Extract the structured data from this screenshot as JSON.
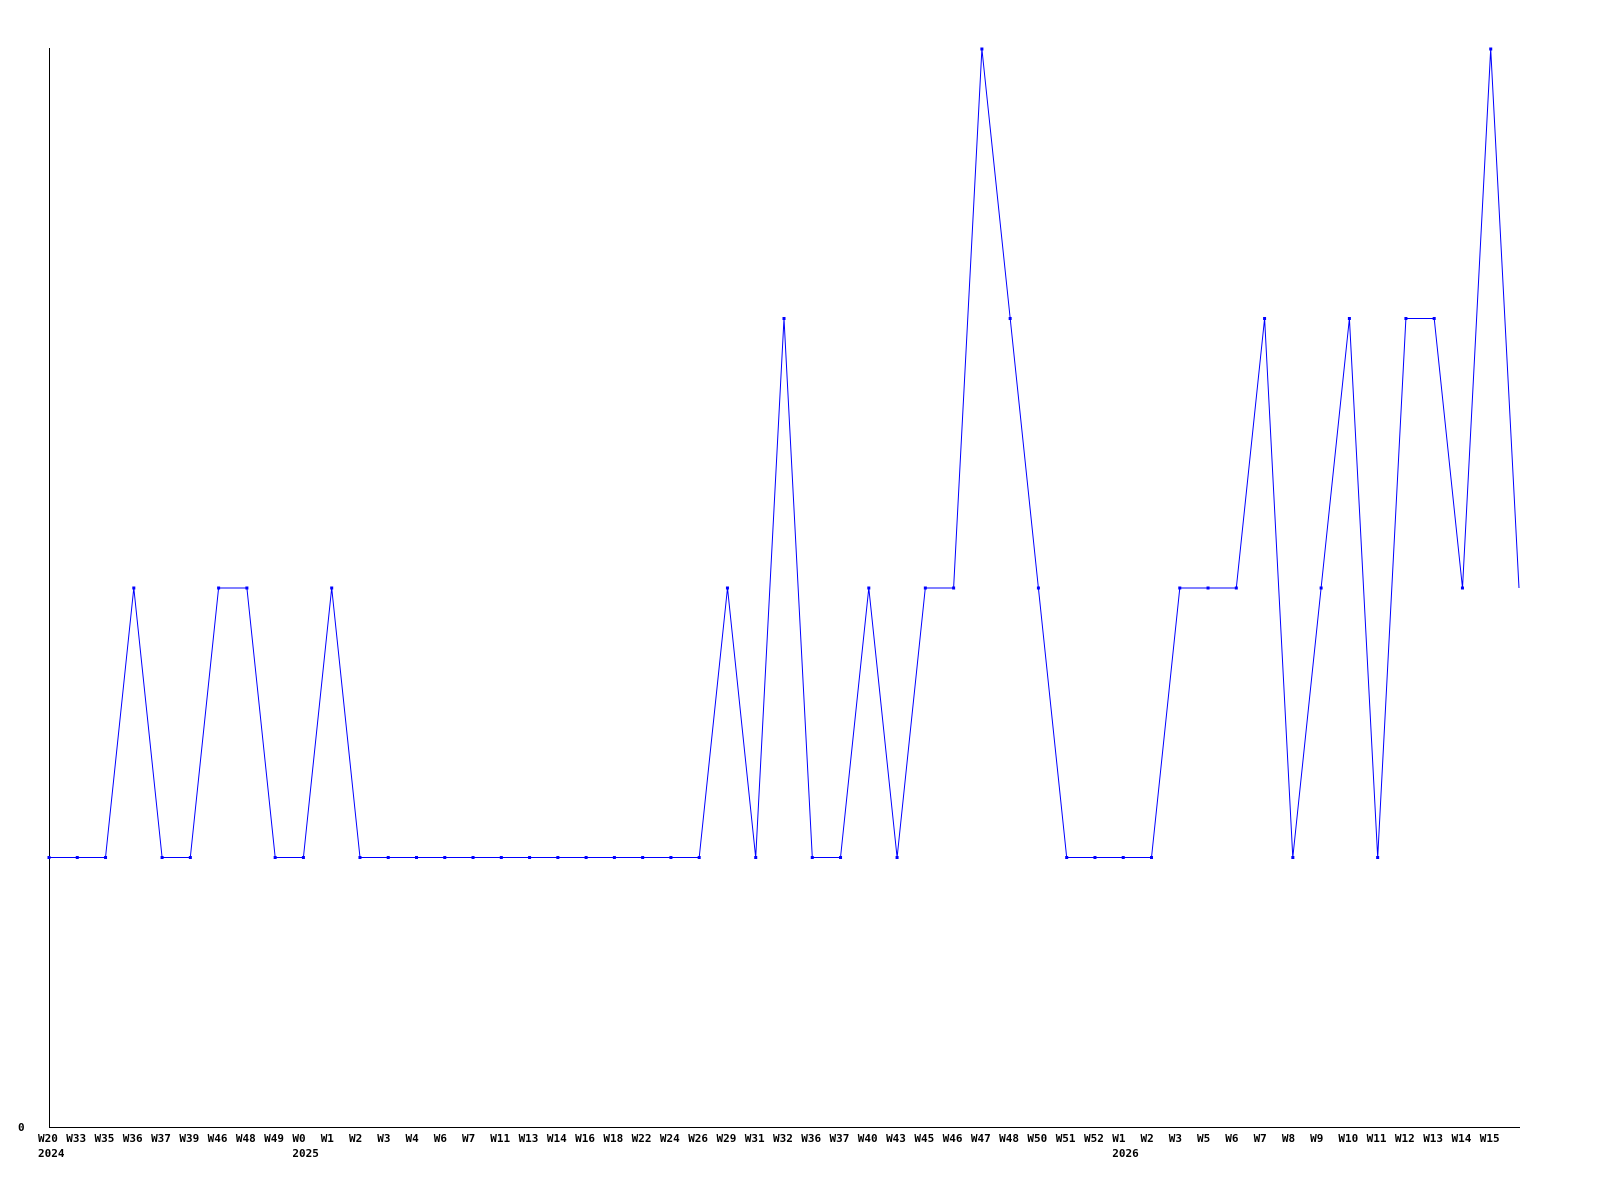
{
  "chart_data": {
    "type": "line",
    "title": "",
    "xlabel": "",
    "ylabel": "",
    "ylim": [
      0,
      4
    ],
    "y_tick_labels": [
      "0"
    ],
    "grid": false,
    "line_color": "#0000ff",
    "x_labels": [
      "W20",
      "W33",
      "W35",
      "W36",
      "W37",
      "W39",
      "W46",
      "W48",
      "W49",
      "W0",
      "W1",
      "W2",
      "W3",
      "W4",
      "W6",
      "W7",
      "W11",
      "W13",
      "W14",
      "W16",
      "W18",
      "W22",
      "W24",
      "W26",
      "W29",
      "W31",
      "W32",
      "W36",
      "W37",
      "W40",
      "W43",
      "W45",
      "W46",
      "W47",
      "W48",
      "W50",
      "W51",
      "W52",
      "W1",
      "W2",
      "W3",
      "W5",
      "W6",
      "W7",
      "W8",
      "W9",
      "W10",
      "W11",
      "W12",
      "W13",
      "W14",
      "W15",
      ""
    ],
    "year_labels": [
      {
        "index": 0,
        "label": "2024"
      },
      {
        "index": 9,
        "label": "2025"
      },
      {
        "index": 38,
        "label": "2026"
      }
    ],
    "values": [
      1,
      1,
      1,
      2,
      1,
      1,
      2,
      2,
      1,
      1,
      2,
      1,
      1,
      1,
      1,
      1,
      1,
      1,
      1,
      1,
      1,
      1,
      1,
      1,
      2,
      1,
      3,
      1,
      1,
      2,
      1,
      2,
      2,
      4,
      3,
      2,
      1,
      1,
      1,
      1,
      2,
      2,
      2,
      3,
      1,
      2,
      3,
      1,
      3,
      3,
      2,
      4,
      2
    ]
  }
}
